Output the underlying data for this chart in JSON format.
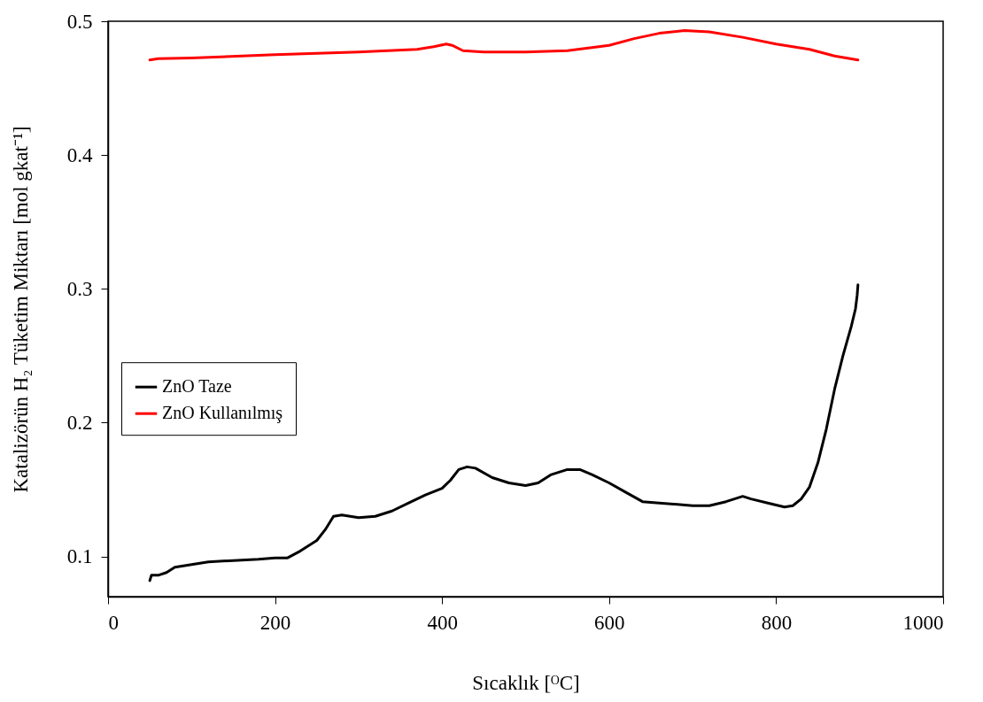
{
  "chart_data": {
    "type": "line",
    "xlabel": "Sıcaklık [ᴼC]",
    "ylabel": "Katalizörün H₂ Tüketim Miktarı [mol gkat⁻¹]",
    "xlim": [
      0,
      1000
    ],
    "xticks": [
      0,
      200,
      400,
      600,
      800,
      1000
    ],
    "ylim": [
      0.07,
      0.5
    ],
    "yticks": [
      0.1,
      0.2,
      0.3,
      0.4,
      0.5
    ],
    "grid": false,
    "legend": "left",
    "line_style": "solid",
    "marker": "none",
    "series": [
      {
        "name": "ZnO Taze",
        "color": "#000000",
        "x": [
          50,
          52,
          60,
          70,
          80,
          100,
          120,
          150,
          180,
          200,
          215,
          230,
          250,
          260,
          270,
          280,
          300,
          320,
          340,
          360,
          380,
          400,
          410,
          420,
          430,
          440,
          460,
          480,
          500,
          515,
          530,
          550,
          565,
          580,
          600,
          620,
          640,
          660,
          700,
          720,
          740,
          760,
          770,
          790,
          810,
          820,
          830,
          840,
          850,
          860,
          870,
          880,
          890,
          895,
          897,
          898
        ],
        "values": [
          0.082,
          0.086,
          0.086,
          0.088,
          0.092,
          0.094,
          0.096,
          0.097,
          0.098,
          0.099,
          0.099,
          0.104,
          0.112,
          0.12,
          0.13,
          0.131,
          0.129,
          0.13,
          0.134,
          0.14,
          0.146,
          0.151,
          0.157,
          0.165,
          0.167,
          0.166,
          0.159,
          0.155,
          0.153,
          0.155,
          0.161,
          0.165,
          0.165,
          0.161,
          0.155,
          0.148,
          0.141,
          0.14,
          0.138,
          0.138,
          0.141,
          0.145,
          0.143,
          0.14,
          0.137,
          0.138,
          0.143,
          0.152,
          0.17,
          0.195,
          0.225,
          0.25,
          0.272,
          0.285,
          0.295,
          0.303
        ]
      },
      {
        "name": "ZnO Kullanılmış",
        "color": "#ff0000",
        "x": [
          50,
          60,
          100,
          200,
          300,
          370,
          390,
          405,
          412,
          425,
          450,
          500,
          550,
          600,
          630,
          660,
          690,
          720,
          760,
          800,
          840,
          870,
          898
        ],
        "values": [
          0.471,
          0.472,
          0.4725,
          0.475,
          0.477,
          0.479,
          0.481,
          0.483,
          0.482,
          0.478,
          0.477,
          0.477,
          0.478,
          0.482,
          0.487,
          0.491,
          0.493,
          0.492,
          0.488,
          0.483,
          0.479,
          0.474,
          0.471
        ]
      }
    ]
  }
}
